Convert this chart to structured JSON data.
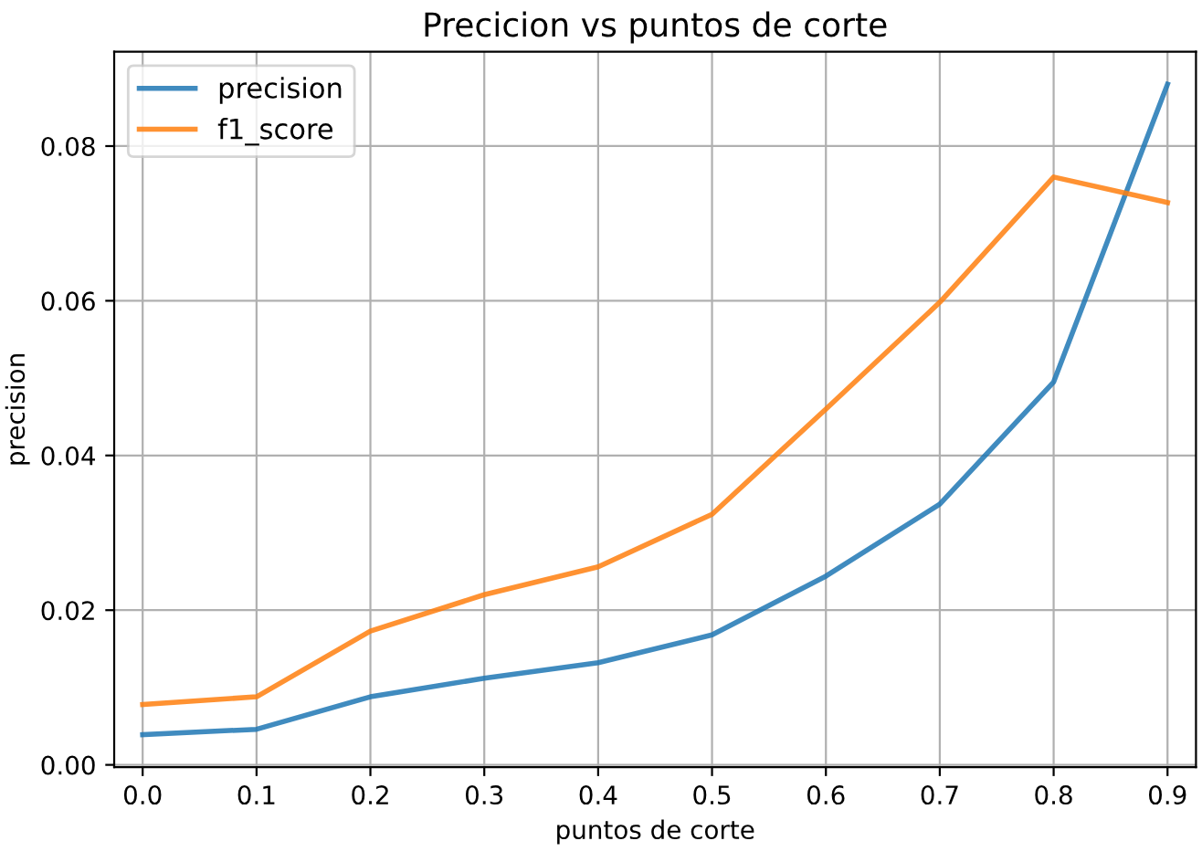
{
  "chart_data": {
    "type": "line",
    "title": "Precicion vs puntos de corte",
    "xlabel": "puntos de corte",
    "ylabel": "precision",
    "x": [
      0.0,
      0.1,
      0.2,
      0.3,
      0.4,
      0.5,
      0.6,
      0.7,
      0.8,
      0.9
    ],
    "series": [
      {
        "name": "precision",
        "color": "#1f77b4",
        "values": [
          0.0039,
          0.0046,
          0.0088,
          0.0112,
          0.0132,
          0.0168,
          0.0244,
          0.0337,
          0.0495,
          0.088
        ]
      },
      {
        "name": "f1_score",
        "color": "#ff7f0e",
        "values": [
          0.0078,
          0.0088,
          0.0173,
          0.022,
          0.0256,
          0.0324,
          0.046,
          0.0598,
          0.076,
          0.0727
        ]
      }
    ],
    "xlim": [
      -0.025,
      0.925
    ],
    "ylim": [
      -0.0003,
      0.0922
    ],
    "xticks": [
      {
        "value": 0.0,
        "label": "0.0"
      },
      {
        "value": 0.1,
        "label": "0.1"
      },
      {
        "value": 0.2,
        "label": "0.2"
      },
      {
        "value": 0.3,
        "label": "0.3"
      },
      {
        "value": 0.4,
        "label": "0.4"
      },
      {
        "value": 0.5,
        "label": "0.5"
      },
      {
        "value": 0.6,
        "label": "0.6"
      },
      {
        "value": 0.7,
        "label": "0.7"
      },
      {
        "value": 0.8,
        "label": "0.8"
      },
      {
        "value": 0.9,
        "label": "0.9"
      }
    ],
    "yticks": [
      {
        "value": 0.0,
        "label": "0.00"
      },
      {
        "value": 0.02,
        "label": "0.02"
      },
      {
        "value": 0.04,
        "label": "0.04"
      },
      {
        "value": 0.06,
        "label": "0.06"
      },
      {
        "value": 0.08,
        "label": "0.08"
      }
    ],
    "grid": true,
    "legend": "top left"
  }
}
